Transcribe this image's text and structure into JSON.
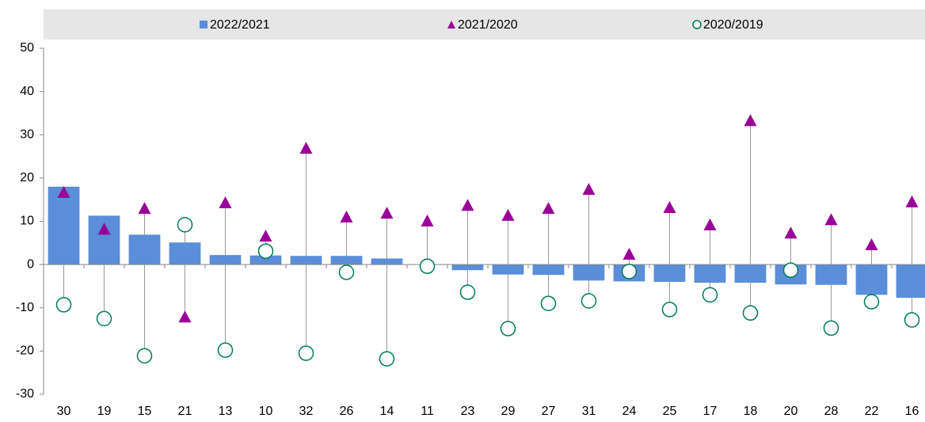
{
  "chart_data": {
    "type": "bar",
    "categories": [
      "30",
      "19",
      "15",
      "21",
      "13",
      "10",
      "32",
      "26",
      "14",
      "11",
      "23",
      "29",
      "27",
      "31",
      "24",
      "25",
      "17",
      "18",
      "20",
      "28",
      "22",
      "16"
    ],
    "series": [
      {
        "name": "2022/2021",
        "type": "bar",
        "color": "#5a8ed9",
        "values": [
          18,
          11.3,
          6.9,
          5.1,
          2.2,
          2.1,
          2.0,
          2.0,
          1.4,
          0,
          -1.3,
          -2.3,
          -2.4,
          -3.7,
          -3.9,
          -4.0,
          -4.2,
          -4.2,
          -4.6,
          -4.7,
          -7.0,
          -7.7
        ]
      },
      {
        "name": "2021/2020",
        "type": "scatter",
        "marker": "triangle",
        "color": "#990099",
        "values": [
          16.7,
          8.2,
          13.0,
          -12.1,
          14.3,
          6.6,
          26.9,
          11.0,
          11.9,
          10.1,
          13.7,
          11.4,
          13.0,
          17.4,
          2.4,
          13.2,
          9.2,
          33.3,
          7.3,
          10.4,
          4.6,
          14.5
        ]
      },
      {
        "name": "2020/2019",
        "type": "scatter",
        "marker": "circle",
        "color": "#007a5a",
        "values": [
          -9.3,
          -12.5,
          -21.1,
          9.2,
          -19.8,
          3.1,
          -20.5,
          -1.8,
          -21.8,
          -0.4,
          -6.4,
          -14.8,
          -9.0,
          -8.4,
          -1.6,
          -10.4,
          -7.0,
          -11.2,
          -1.3,
          -14.7,
          -8.6,
          -12.8
        ]
      }
    ],
    "ylim": [
      -30,
      50
    ],
    "yticks": [
      -30,
      -20,
      -10,
      0,
      10,
      20,
      30,
      40,
      50
    ],
    "grid": false,
    "high_low_lines": true,
    "legend": "top"
  }
}
